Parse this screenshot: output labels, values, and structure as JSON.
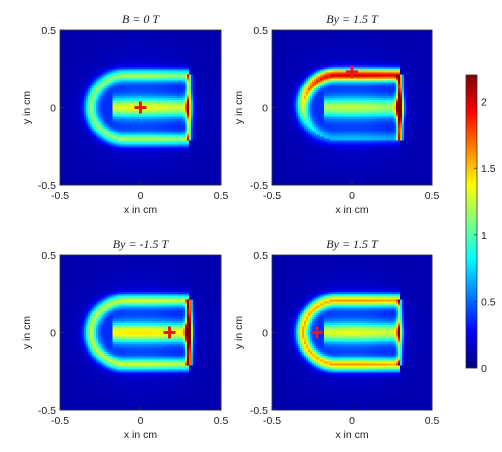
{
  "chart_data": {
    "type": "heatmap",
    "colormap": "jet",
    "colors": {
      "marker": "#e8171a",
      "background": "#0a1aa8"
    },
    "panels": [
      {
        "title": "B = 0 T",
        "xlabel": "x in cm",
        "ylabel": "y in cm",
        "xlim": [
          -0.5,
          0.5
        ],
        "ylim": [
          -0.5,
          0.5
        ],
        "xticks": [
          "-0.5",
          "0",
          "0.5"
        ],
        "yticks": [
          "0.5",
          "0",
          "-0.5"
        ],
        "marker": {
          "x": 0.0,
          "y": 0.0
        },
        "field": {
          "dome": 0.85,
          "tube": 0.9,
          "flat": 0.95,
          "rim": 0.95,
          "asym": 0.0
        }
      },
      {
        "title": "By = 1.5 T",
        "xlabel": "x in cm",
        "ylabel": "y in cm",
        "xlim": [
          -0.5,
          0.5
        ],
        "ylim": [
          -0.5,
          0.5
        ],
        "xticks": [
          "-0.5",
          "0",
          "0.5"
        ],
        "yticks": [
          "0.5",
          "0",
          "-0.5"
        ],
        "marker": {
          "x": 0.0,
          "y": 0.23
        },
        "field": {
          "dome": 1.0,
          "tube": 0.8,
          "flat": 1.6,
          "rim": 2.1,
          "asym": 0.7
        }
      },
      {
        "title": "By = -1.5 T",
        "xlabel": "x in cm",
        "ylabel": "y in cm",
        "xlim": [
          -0.5,
          0.5
        ],
        "ylim": [
          -0.5,
          0.5
        ],
        "xticks": [
          "-0.5",
          "0",
          "0.5"
        ],
        "yticks": [
          "0.5",
          "0",
          "-0.5"
        ],
        "marker": {
          "x": 0.18,
          "y": 0.0
        },
        "field": {
          "dome": 0.95,
          "tube": 1.0,
          "flat": 1.8,
          "rim": 1.7,
          "asym": 0.0
        }
      },
      {
        "title": "By = 1.5 T",
        "xlabel": "x in cm",
        "ylabel": "y in cm",
        "xlim": [
          -0.5,
          0.5
        ],
        "ylim": [
          -0.5,
          0.5
        ],
        "xticks": [
          "-0.5",
          "0",
          "0.5"
        ],
        "yticks": [
          "0.5",
          "0",
          "-0.5"
        ],
        "marker": {
          "x": -0.22,
          "y": 0.0
        },
        "field": {
          "dome": 1.25,
          "tube": 0.9,
          "flat": 0.75,
          "rim": 0.9,
          "asym": 0.0
        }
      }
    ],
    "colorbar": {
      "range": [
        0,
        2.2
      ],
      "ticks": [
        0,
        0.5,
        1,
        1.5,
        2
      ],
      "tick_labels": [
        "0",
        "0.5",
        "1",
        "1.5",
        "2"
      ]
    }
  }
}
